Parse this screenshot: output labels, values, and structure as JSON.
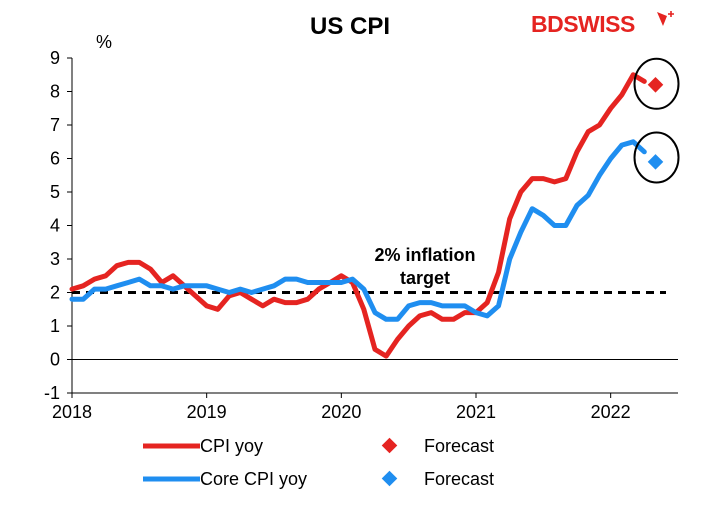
{
  "title": "US CPI",
  "brand": {
    "text": "BDSWISS",
    "color": "#e52421"
  },
  "chart_data": {
    "type": "line",
    "title": "US CPI",
    "ylabel": "%",
    "xlabel": "",
    "ylim": [
      -1,
      9
    ],
    "xlim": [
      2018,
      2022.5
    ],
    "yticks": [
      -1,
      0,
      1,
      2,
      3,
      4,
      5,
      6,
      7,
      8,
      9
    ],
    "xticks": [
      2018,
      2019,
      2020,
      2021,
      2022
    ],
    "grid": false,
    "legend_position": "bottom",
    "series": [
      {
        "name": "CPI yoy",
        "color": "#e52421",
        "style": "line",
        "x": [
          2018.0,
          2018.083,
          2018.167,
          2018.25,
          2018.333,
          2018.417,
          2018.5,
          2018.583,
          2018.667,
          2018.75,
          2018.833,
          2018.917,
          2019.0,
          2019.083,
          2019.167,
          2019.25,
          2019.333,
          2019.417,
          2019.5,
          2019.583,
          2019.667,
          2019.75,
          2019.833,
          2019.917,
          2020.0,
          2020.083,
          2020.167,
          2020.25,
          2020.333,
          2020.417,
          2020.5,
          2020.583,
          2020.667,
          2020.75,
          2020.833,
          2020.917,
          2021.0,
          2021.083,
          2021.167,
          2021.25,
          2021.333,
          2021.417,
          2021.5,
          2021.583,
          2021.667,
          2021.75,
          2021.833,
          2021.917,
          2022.0,
          2022.083,
          2022.167,
          2022.25
        ],
        "y": [
          2.1,
          2.2,
          2.4,
          2.5,
          2.8,
          2.9,
          2.9,
          2.7,
          2.3,
          2.5,
          2.2,
          1.9,
          1.6,
          1.5,
          1.9,
          2.0,
          1.8,
          1.6,
          1.8,
          1.7,
          1.7,
          1.8,
          2.1,
          2.3,
          2.5,
          2.3,
          1.5,
          0.3,
          0.1,
          0.6,
          1.0,
          1.3,
          1.4,
          1.2,
          1.2,
          1.4,
          1.4,
          1.7,
          2.6,
          4.2,
          5.0,
          5.4,
          5.4,
          5.3,
          5.4,
          6.2,
          6.8,
          7.0,
          7.5,
          7.9,
          8.5,
          8.3
        ]
      },
      {
        "name": "Forecast",
        "color": "#e52421",
        "style": "marker",
        "x": [
          2022.333
        ],
        "y": [
          8.2
        ]
      },
      {
        "name": "Core CPI yoy",
        "color": "#1f8ef0",
        "style": "line",
        "x": [
          2018.0,
          2018.083,
          2018.167,
          2018.25,
          2018.333,
          2018.417,
          2018.5,
          2018.583,
          2018.667,
          2018.75,
          2018.833,
          2018.917,
          2019.0,
          2019.083,
          2019.167,
          2019.25,
          2019.333,
          2019.417,
          2019.5,
          2019.583,
          2019.667,
          2019.75,
          2019.833,
          2019.917,
          2020.0,
          2020.083,
          2020.167,
          2020.25,
          2020.333,
          2020.417,
          2020.5,
          2020.583,
          2020.667,
          2020.75,
          2020.833,
          2020.917,
          2021.0,
          2021.083,
          2021.167,
          2021.25,
          2021.333,
          2021.417,
          2021.5,
          2021.583,
          2021.667,
          2021.75,
          2021.833,
          2021.917,
          2022.0,
          2022.083,
          2022.167,
          2022.25
        ],
        "y": [
          1.8,
          1.8,
          2.1,
          2.1,
          2.2,
          2.3,
          2.4,
          2.2,
          2.2,
          2.1,
          2.2,
          2.2,
          2.2,
          2.1,
          2.0,
          2.1,
          2.0,
          2.1,
          2.2,
          2.4,
          2.4,
          2.3,
          2.3,
          2.3,
          2.3,
          2.4,
          2.1,
          1.4,
          1.2,
          1.2,
          1.6,
          1.7,
          1.7,
          1.6,
          1.6,
          1.6,
          1.4,
          1.3,
          1.6,
          3.0,
          3.8,
          4.5,
          4.3,
          4.0,
          4.0,
          4.6,
          4.9,
          5.5,
          6.0,
          6.4,
          6.5,
          6.2
        ]
      },
      {
        "name": "Forecast",
        "color": "#1f8ef0",
        "style": "marker",
        "x": [
          2022.333
        ],
        "y": [
          5.9
        ]
      }
    ],
    "reference_line": {
      "y": 2,
      "style": "dashed",
      "color": "#000000"
    },
    "annotations": [
      {
        "text": "2% inflation target",
        "x": 2020.9,
        "y": 3.0
      },
      {
        "text": "",
        "shape": "circle",
        "x": 2022.333,
        "y": 8.2
      },
      {
        "text": "",
        "shape": "circle",
        "x": 2022.333,
        "y": 6.0
      }
    ]
  }
}
